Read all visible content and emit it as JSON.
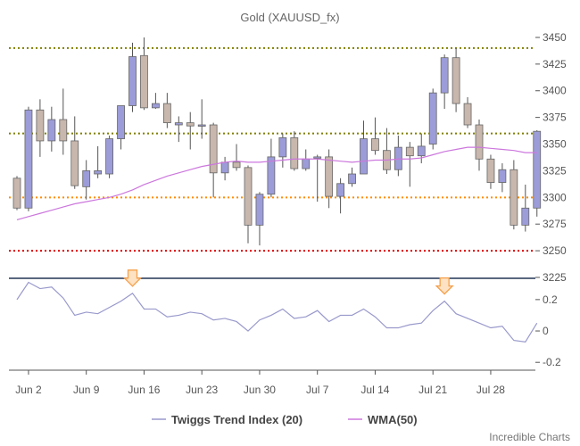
{
  "chart_data": [
    {
      "type": "candlestick",
      "title": "Gold (XAUUSD_fx)",
      "x_tick_labels": [
        "Jun 2",
        "Jun 9",
        "Jun 16",
        "Jun 23",
        "Jun 30",
        "Jul 7",
        "Jul 14",
        "Jul 21",
        "Jul 28"
      ],
      "ylim": [
        3225,
        3460
      ],
      "y_ticks": [
        3225,
        3250,
        3275,
        3300,
        3325,
        3350,
        3375,
        3400,
        3425,
        3450
      ],
      "horizontal_lines": [
        {
          "value": 3440,
          "color": "#808000",
          "style": "dotted"
        },
        {
          "value": 3360,
          "color": "#808000",
          "style": "dotted"
        },
        {
          "value": 3300,
          "color": "#ff8c00",
          "style": "dotted"
        },
        {
          "value": 3250,
          "color": "#e00000",
          "style": "dotted"
        }
      ],
      "up_color": "#9c9cd9",
      "down_color": "#c8b7ad",
      "candles": [
        {
          "date": "May 30",
          "o": 3318,
          "h": 3320,
          "l": 3288,
          "c": 3290
        },
        {
          "date": "Jun 2",
          "o": 3290,
          "h": 3385,
          "l": 3287,
          "c": 3382
        },
        {
          "date": "Jun 3",
          "o": 3382,
          "h": 3392,
          "l": 3338,
          "c": 3353
        },
        {
          "date": "Jun 4",
          "o": 3353,
          "h": 3385,
          "l": 3343,
          "c": 3373
        },
        {
          "date": "Jun 5",
          "o": 3373,
          "h": 3402,
          "l": 3340,
          "c": 3353
        },
        {
          "date": "Jun 6",
          "o": 3353,
          "h": 3376,
          "l": 3308,
          "c": 3311
        },
        {
          "date": "Jun 9",
          "o": 3310,
          "h": 3335,
          "l": 3298,
          "c": 3325
        },
        {
          "date": "Jun 10",
          "o": 3322,
          "h": 3348,
          "l": 3318,
          "c": 3325
        },
        {
          "date": "Jun 11",
          "o": 3322,
          "h": 3358,
          "l": 3318,
          "c": 3355
        },
        {
          "date": "Jun 12",
          "o": 3355,
          "h": 3385,
          "l": 3345,
          "c": 3386
        },
        {
          "date": "Jun 13",
          "o": 3386,
          "h": 3445,
          "l": 3380,
          "c": 3432
        },
        {
          "date": "Jun 16",
          "o": 3433,
          "h": 3450,
          "l": 3382,
          "c": 3384
        },
        {
          "date": "Jun 17",
          "o": 3384,
          "h": 3398,
          "l": 3383,
          "c": 3388
        },
        {
          "date": "Jun 18",
          "o": 3388,
          "h": 3398,
          "l": 3365,
          "c": 3370
        },
        {
          "date": "Jun 19",
          "o": 3368,
          "h": 3376,
          "l": 3352,
          "c": 3370
        },
        {
          "date": "Jun 20",
          "o": 3370,
          "h": 3380,
          "l": 3345,
          "c": 3367
        },
        {
          "date": "Jun 23",
          "o": 3368,
          "h": 3392,
          "l": 3355,
          "c": 3368
        },
        {
          "date": "Jun 24",
          "o": 3368,
          "h": 3370,
          "l": 3300,
          "c": 3323
        },
        {
          "date": "Jun 25",
          "o": 3323,
          "h": 3338,
          "l": 3316,
          "c": 3333
        },
        {
          "date": "Jun 26",
          "o": 3333,
          "h": 3350,
          "l": 3325,
          "c": 3328
        },
        {
          "date": "Jun 27",
          "o": 3328,
          "h": 3330,
          "l": 3257,
          "c": 3274
        },
        {
          "date": "Jun 30",
          "o": 3274,
          "h": 3305,
          "l": 3255,
          "c": 3303
        },
        {
          "date": "Jul 1",
          "o": 3303,
          "h": 3355,
          "l": 3300,
          "c": 3338
        },
        {
          "date": "Jul 2",
          "o": 3338,
          "h": 3360,
          "l": 3328,
          "c": 3356
        },
        {
          "date": "Jul 3",
          "o": 3356,
          "h": 3362,
          "l": 3325,
          "c": 3327
        },
        {
          "date": "Jul 4",
          "o": 3327,
          "h": 3345,
          "l": 3325,
          "c": 3336
        },
        {
          "date": "Jul 7",
          "o": 3338,
          "h": 3340,
          "l": 3296,
          "c": 3338
        },
        {
          "date": "Jul 8",
          "o": 3338,
          "h": 3345,
          "l": 3290,
          "c": 3301
        },
        {
          "date": "Jul 9",
          "o": 3301,
          "h": 3318,
          "l": 3285,
          "c": 3313
        },
        {
          "date": "Jul 10",
          "o": 3313,
          "h": 3328,
          "l": 3310,
          "c": 3322
        },
        {
          "date": "Jul 11",
          "o": 3322,
          "h": 3372,
          "l": 3322,
          "c": 3355
        },
        {
          "date": "Jul 14",
          "o": 3355,
          "h": 3375,
          "l": 3340,
          "c": 3344
        },
        {
          "date": "Jul 15",
          "o": 3344,
          "h": 3365,
          "l": 3322,
          "c": 3326
        },
        {
          "date": "Jul 16",
          "o": 3326,
          "h": 3358,
          "l": 3320,
          "c": 3347
        },
        {
          "date": "Jul 17",
          "o": 3347,
          "h": 3352,
          "l": 3310,
          "c": 3339
        },
        {
          "date": "Jul 18",
          "o": 3339,
          "h": 3360,
          "l": 3332,
          "c": 3348
        },
        {
          "date": "Jul 21",
          "o": 3350,
          "h": 3402,
          "l": 3345,
          "c": 3398
        },
        {
          "date": "Jul 22",
          "o": 3398,
          "h": 3434,
          "l": 3383,
          "c": 3431
        },
        {
          "date": "Jul 23",
          "o": 3431,
          "h": 3440,
          "l": 3380,
          "c": 3388
        },
        {
          "date": "Jul 24",
          "o": 3388,
          "h": 3394,
          "l": 3365,
          "c": 3368
        },
        {
          "date": "Jul 25",
          "o": 3368,
          "h": 3373,
          "l": 3325,
          "c": 3336
        },
        {
          "date": "Jul 28",
          "o": 3336,
          "h": 3340,
          "l": 3308,
          "c": 3314
        },
        {
          "date": "Jul 29",
          "o": 3314,
          "h": 3332,
          "l": 3305,
          "c": 3326
        },
        {
          "date": "Jul 30",
          "o": 3326,
          "h": 3335,
          "l": 3270,
          "c": 3274
        },
        {
          "date": "Jul 31",
          "o": 3274,
          "h": 3312,
          "l": 3268,
          "c": 3290
        },
        {
          "date": "Aug 1",
          "o": 3290,
          "h": 3363,
          "l": 3282,
          "c": 3362
        }
      ],
      "series": [
        {
          "name": "WMA(50)",
          "color": "#cc77dd",
          "values": [
            3279,
            3282,
            3285,
            3288,
            3291,
            3294,
            3296,
            3298,
            3300,
            3303,
            3307,
            3312,
            3316,
            3320,
            3323,
            3326,
            3329,
            3331,
            3333,
            3334,
            3333,
            3333,
            3334,
            3335,
            3336,
            3336,
            3336,
            3335,
            3334,
            3333,
            3334,
            3335,
            3335,
            3336,
            3336,
            3337,
            3340,
            3343,
            3345,
            3347,
            3347,
            3346,
            3345,
            3344,
            3342,
            3342
          ]
        }
      ]
    },
    {
      "type": "line",
      "ylim": [
        -0.25,
        0.33
      ],
      "y_ticks": [
        -0.2,
        0,
        0.2
      ],
      "y_tick_labels": [
        "-0.2",
        "0",
        "0.2"
      ],
      "arrow_color": "#f5a04a",
      "signals": [
        {
          "date": "Jun 13",
          "type": "down-arrow"
        },
        {
          "date": "Jul 22",
          "type": "down-arrow"
        }
      ],
      "series": [
        {
          "name": "Twiggs Trend Index (20)",
          "color": "#9999cc",
          "values": [
            0.2,
            0.31,
            0.27,
            0.28,
            0.21,
            0.1,
            0.12,
            0.11,
            0.15,
            0.19,
            0.24,
            0.14,
            0.14,
            0.09,
            0.1,
            0.12,
            0.11,
            0.07,
            0.08,
            0.06,
            0,
            0.07,
            0.1,
            0.14,
            0.08,
            0.09,
            0.13,
            0.06,
            0.1,
            0.1,
            0.14,
            0.09,
            0.02,
            0.02,
            0.04,
            0.05,
            0.13,
            0.19,
            0.11,
            0.08,
            0.05,
            0.02,
            0.03,
            -0.06,
            -0.07,
            0.05
          ]
        }
      ]
    }
  ],
  "legend": [
    {
      "label": "Twiggs Trend Index (20)",
      "color": "#9999cc"
    },
    {
      "label": "WMA(50)",
      "color": "#cc77dd"
    }
  ],
  "watermark": "Incredible Charts",
  "colors": {
    "axis": "#555555",
    "separator": "#223355"
  }
}
